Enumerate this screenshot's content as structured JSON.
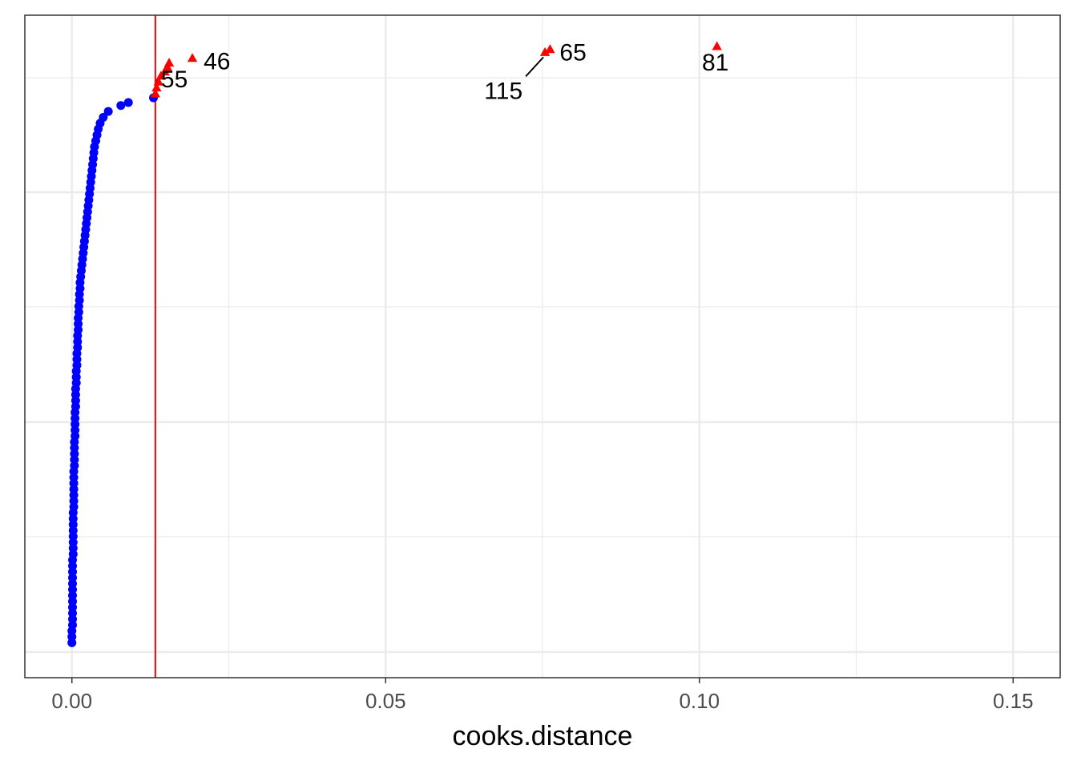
{
  "chart_data": {
    "type": "scatter",
    "title": "",
    "xlabel": "cooks.distance",
    "ylabel": "",
    "xlim": [
      -0.0075,
      0.1575
    ],
    "x_ticks": [
      0.0,
      0.05,
      0.1,
      0.15
    ],
    "x_tick_labels": [
      "0.00",
      "0.05",
      "0.10",
      "0.15"
    ],
    "x_minor_ticks": [
      0.025,
      0.075,
      0.125
    ],
    "ylim": [
      0,
      10
    ],
    "grid": true,
    "theme": "bw",
    "threshold": {
      "x": 0.0133,
      "color": "#FF0000"
    },
    "colors": {
      "normal": "#0000FF",
      "influential": "#FF0000",
      "grid": "#EBEBEB",
      "border": "#333333"
    },
    "series": [
      {
        "marker": "circle",
        "color": "#0000FF",
        "points": [
          [
            0.0,
            0.05
          ],
          [
            0.0,
            0.15
          ],
          [
            0.0,
            0.25
          ],
          [
            0.0001,
            0.35
          ],
          [
            0.0001,
            0.45
          ],
          [
            0.0001,
            0.55
          ],
          [
            0.0001,
            0.65
          ],
          [
            0.0001,
            0.75
          ],
          [
            0.0001,
            0.85
          ],
          [
            0.0001,
            0.95
          ],
          [
            0.0001,
            1.05
          ],
          [
            0.0001,
            1.15
          ],
          [
            0.0001,
            1.25
          ],
          [
            0.0001,
            1.35
          ],
          [
            0.0001,
            1.45
          ],
          [
            0.0002,
            1.55
          ],
          [
            0.0002,
            1.65
          ],
          [
            0.0002,
            1.75
          ],
          [
            0.0002,
            1.85
          ],
          [
            0.0002,
            1.95
          ],
          [
            0.0002,
            2.05
          ],
          [
            0.0002,
            2.15
          ],
          [
            0.0002,
            2.25
          ],
          [
            0.0003,
            2.35
          ],
          [
            0.0003,
            2.45
          ],
          [
            0.0003,
            2.55
          ],
          [
            0.0003,
            2.65
          ],
          [
            0.0003,
            2.75
          ],
          [
            0.0003,
            2.85
          ],
          [
            0.0003,
            2.95
          ],
          [
            0.0004,
            3.05
          ],
          [
            0.0004,
            3.15
          ],
          [
            0.0004,
            3.25
          ],
          [
            0.0004,
            3.35
          ],
          [
            0.0004,
            3.45
          ],
          [
            0.0005,
            3.55
          ],
          [
            0.0005,
            3.65
          ],
          [
            0.0005,
            3.75
          ],
          [
            0.0005,
            3.85
          ],
          [
            0.0005,
            3.95
          ],
          [
            0.0006,
            4.05
          ],
          [
            0.0006,
            4.15
          ],
          [
            0.0006,
            4.25
          ],
          [
            0.0006,
            4.35
          ],
          [
            0.0007,
            4.45
          ],
          [
            0.0007,
            4.55
          ],
          [
            0.0007,
            4.65
          ],
          [
            0.0008,
            4.75
          ],
          [
            0.0008,
            4.85
          ],
          [
            0.0008,
            4.95
          ],
          [
            0.0009,
            5.05
          ],
          [
            0.0009,
            5.15
          ],
          [
            0.0009,
            5.25
          ],
          [
            0.001,
            5.35
          ],
          [
            0.001,
            5.45
          ],
          [
            0.001,
            5.55
          ],
          [
            0.0011,
            5.65
          ],
          [
            0.0011,
            5.75
          ],
          [
            0.0012,
            5.85
          ],
          [
            0.0012,
            5.95
          ],
          [
            0.0013,
            6.05
          ],
          [
            0.0013,
            6.15
          ],
          [
            0.0014,
            6.25
          ],
          [
            0.0015,
            6.35
          ],
          [
            0.0016,
            6.45
          ],
          [
            0.0017,
            6.55
          ],
          [
            0.0018,
            6.65
          ],
          [
            0.0019,
            6.75
          ],
          [
            0.002,
            6.85
          ],
          [
            0.0021,
            6.95
          ],
          [
            0.0022,
            7.05
          ],
          [
            0.0023,
            7.15
          ],
          [
            0.0024,
            7.25
          ],
          [
            0.0025,
            7.35
          ],
          [
            0.0026,
            7.45
          ],
          [
            0.0027,
            7.55
          ],
          [
            0.0028,
            7.65
          ],
          [
            0.0029,
            7.75
          ],
          [
            0.003,
            7.85
          ],
          [
            0.0031,
            7.95
          ],
          [
            0.0032,
            8.05
          ],
          [
            0.0033,
            8.15
          ],
          [
            0.0034,
            8.25
          ],
          [
            0.0035,
            8.35
          ],
          [
            0.0036,
            8.45
          ],
          [
            0.0038,
            8.55
          ],
          [
            0.004,
            8.65
          ],
          [
            0.0042,
            8.75
          ],
          [
            0.0045,
            8.85
          ],
          [
            0.005,
            8.95
          ],
          [
            0.0058,
            9.05
          ],
          [
            0.0078,
            9.15
          ],
          [
            0.009,
            9.2
          ],
          [
            0.013,
            9.28
          ]
        ]
      },
      {
        "marker": "triangle",
        "color": "#FF0000",
        "points": [
          [
            0.0133,
            9.35
          ],
          [
            0.0135,
            9.45
          ],
          [
            0.0138,
            9.55
          ],
          [
            0.0142,
            9.65
          ],
          [
            0.0148,
            9.72
          ],
          [
            0.0152,
            9.8
          ],
          [
            0.0155,
            9.87
          ],
          [
            0.0192,
            9.95
          ],
          [
            0.0754,
            10.05
          ],
          [
            0.0762,
            10.1
          ],
          [
            0.1028,
            10.15
          ]
        ]
      }
    ],
    "annotations": [
      {
        "text": "55",
        "x": 0.0142,
        "y": 9.65
      },
      {
        "text": "46",
        "x": 0.0192,
        "y": 9.95
      },
      {
        "text": "115",
        "x": 0.0754,
        "y": 10.05
      },
      {
        "text": "65",
        "x": 0.0762,
        "y": 10.1
      },
      {
        "text": "81",
        "x": 0.1028,
        "y": 10.15
      }
    ]
  }
}
